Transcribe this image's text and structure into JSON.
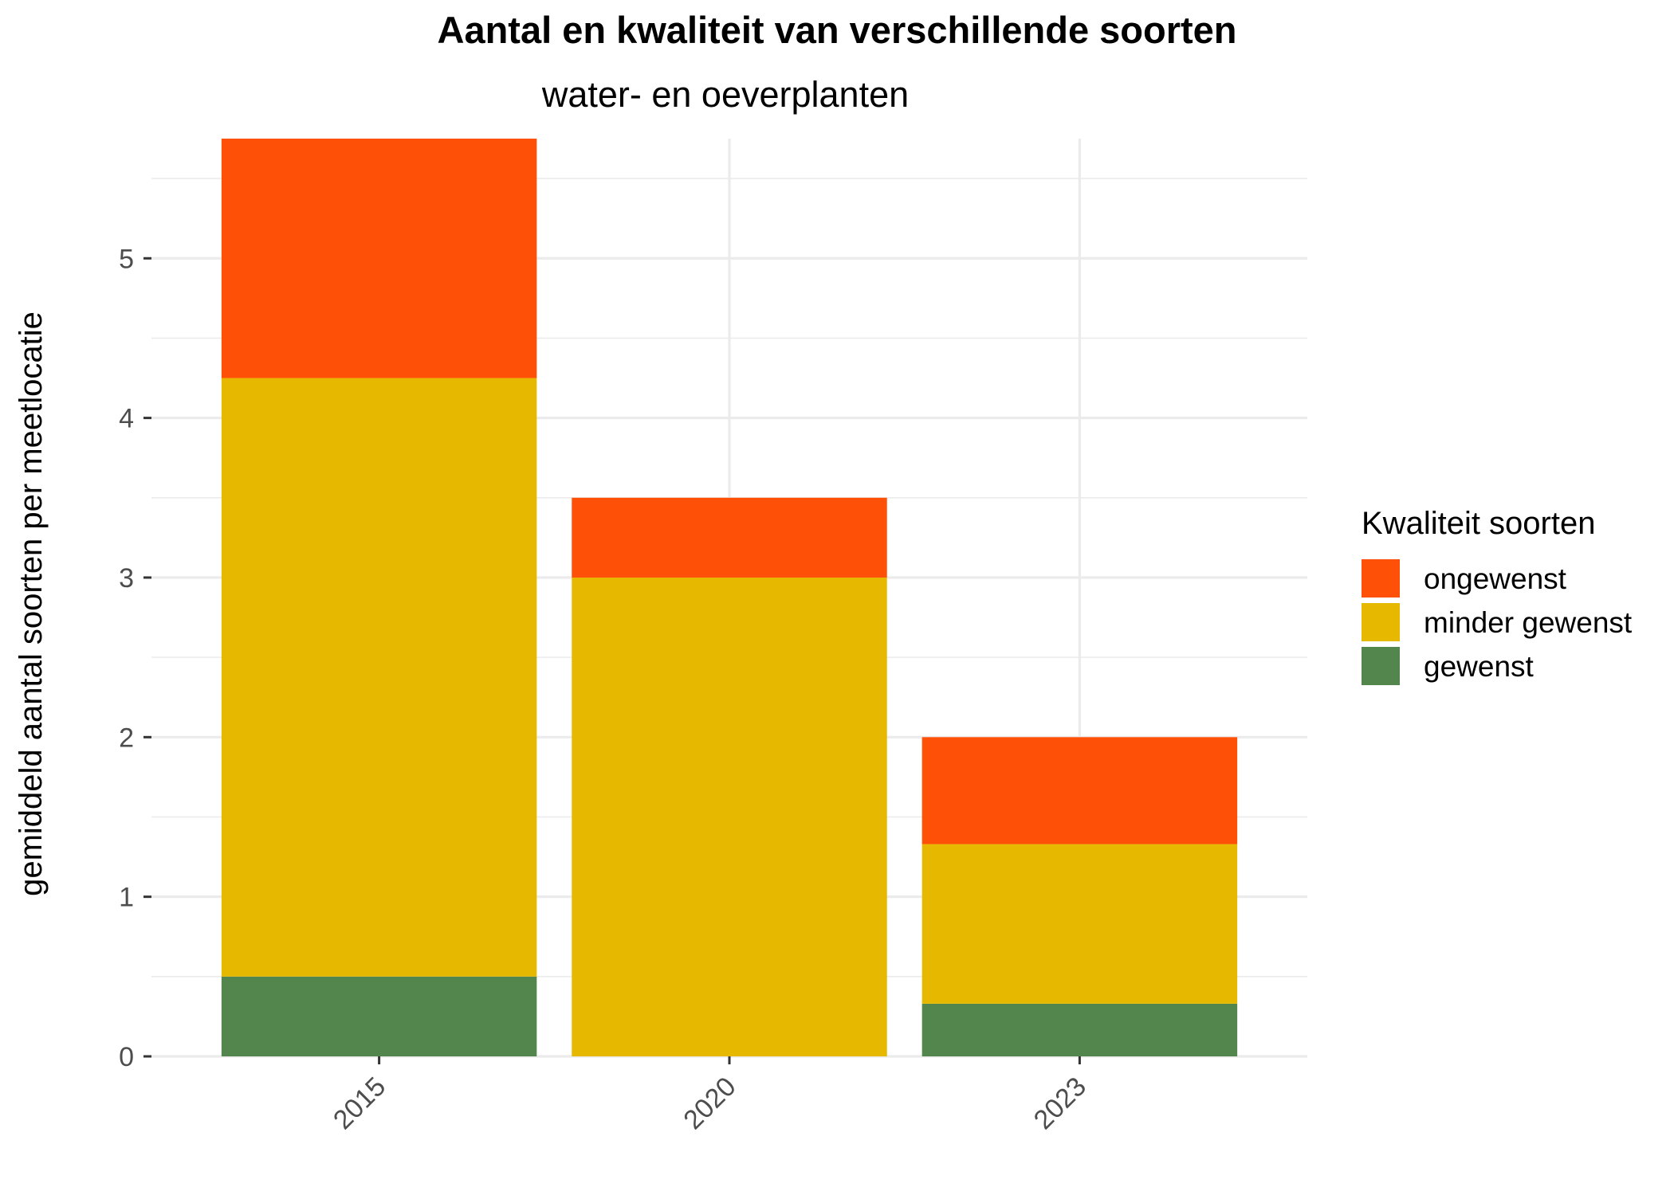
{
  "chart_data": {
    "type": "bar",
    "stacked": true,
    "title": "Aantal en kwaliteit van verschillende soorten",
    "subtitle": "water- en oeverplanten",
    "xlabel": "",
    "ylabel": "gemiddeld aantal soorten per meetlocatie",
    "categories": [
      "2015",
      "2020",
      "2023"
    ],
    "ylim": [
      0,
      5.75
    ],
    "yticks": [
      0,
      1,
      2,
      3,
      4,
      5
    ],
    "grid": true,
    "legend": {
      "title": "Kwaliteit soorten",
      "placement": "right"
    },
    "series": [
      {
        "name": "gewenst",
        "color": "#52864d",
        "values": [
          0.5,
          0.0,
          0.33
        ]
      },
      {
        "name": "minder gewenst",
        "color": "#e6b900",
        "values": [
          3.75,
          3.0,
          1.0
        ]
      },
      {
        "name": "ongewenst",
        "color": "#ff5008",
        "values": [
          1.5,
          0.5,
          0.67
        ]
      }
    ]
  }
}
